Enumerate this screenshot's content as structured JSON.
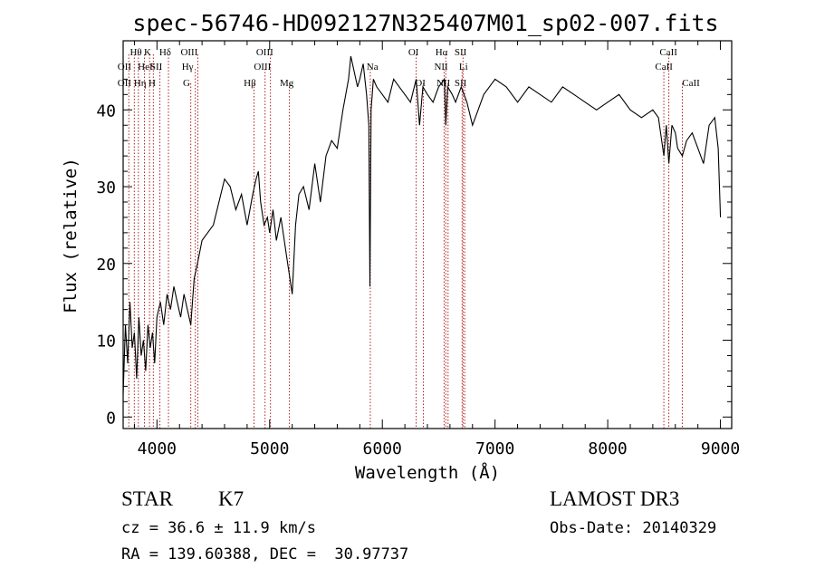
{
  "chart_data": {
    "type": "line",
    "title": "spec-56746-HD092127N325407M01_sp02-007.fits",
    "xlabel": "Wavelength (Å)",
    "ylabel": "Flux (relative)",
    "xlim": [
      3700,
      9100
    ],
    "ylim": [
      -1.5,
      49
    ],
    "x_ticks": [
      4000,
      5000,
      6000,
      7000,
      8000,
      9000
    ],
    "y_ticks": [
      0,
      10,
      20,
      30,
      40
    ],
    "grid": false,
    "line_color": "#000000",
    "marker_color": "#b22222",
    "series": [
      {
        "x": [
          3700,
          3720,
          3740,
          3760,
          3780,
          3800,
          3820,
          3840,
          3860,
          3880,
          3900,
          3920,
          3940,
          3960,
          3980,
          4000,
          4030,
          4060,
          4090,
          4120,
          4150,
          4180,
          4210,
          4240,
          4270,
          4300,
          4330,
          4360,
          4400,
          4450,
          4500,
          4550,
          4600,
          4650,
          4700,
          4750,
          4800,
          4850,
          4880,
          4900,
          4920,
          4950,
          4980,
          5000,
          5030,
          5060,
          5100,
          5150,
          5180,
          5200,
          5230,
          5260,
          5300,
          5350,
          5400,
          5450,
          5500,
          5550,
          5600,
          5650,
          5700,
          5720,
          5750,
          5780,
          5800,
          5830,
          5860,
          5880,
          5890,
          5900,
          5920,
          5950,
          6000,
          6050,
          6100,
          6150,
          6200,
          6250,
          6300,
          6330,
          6360,
          6400,
          6450,
          6500,
          6550,
          6563,
          6580,
          6620,
          6650,
          6700,
          6750,
          6800,
          6850,
          6900,
          6950,
          7000,
          7100,
          7200,
          7300,
          7400,
          7500,
          7600,
          7700,
          7800,
          7900,
          8000,
          8100,
          8200,
          8300,
          8400,
          8450,
          8498,
          8520,
          8542,
          8570,
          8600,
          8620,
          8662,
          8700,
          8750,
          8800,
          8850,
          8900,
          8950,
          8980,
          9000
        ],
        "y": [
          3,
          12,
          7,
          15,
          9,
          11,
          5,
          13,
          8,
          10,
          6,
          12,
          9,
          11,
          7,
          13,
          15,
          12,
          16,
          14,
          17,
          15,
          13,
          16,
          14,
          12,
          18,
          20,
          23,
          24,
          25,
          28,
          31,
          30,
          27,
          29,
          25,
          29,
          31,
          32,
          28,
          25,
          26,
          24,
          27,
          23,
          26,
          21,
          18,
          16,
          25,
          29,
          30,
          27,
          33,
          28,
          34,
          36,
          35,
          40,
          44,
          47,
          45,
          43,
          44,
          46,
          42,
          38,
          17,
          40,
          44,
          43,
          42,
          41,
          44,
          43,
          42,
          41,
          44,
          38,
          43,
          42,
          41,
          43,
          44,
          38,
          43,
          42,
          41,
          43,
          41,
          38,
          40,
          42,
          43,
          44,
          43,
          41,
          43,
          42,
          41,
          43,
          42,
          41,
          40,
          41,
          42,
          40,
          39,
          40,
          39,
          34,
          38,
          33,
          38,
          37,
          35,
          34,
          36,
          37,
          35,
          33,
          38,
          39,
          35,
          26
        ]
      }
    ],
    "line_markers": [
      {
        "x": 3750,
        "row": 1
      },
      {
        "x": 3799,
        "row": 1
      },
      {
        "x": 3835,
        "row": 1
      },
      {
        "x": 3889,
        "row": 1
      },
      {
        "x": 3934,
        "row": 1
      },
      {
        "x": 3968,
        "row": 1
      },
      {
        "x": 4026,
        "row": 2
      },
      {
        "x": 4102,
        "row": 1
      },
      {
        "x": 4300,
        "row": 3
      },
      {
        "x": 4340,
        "row": 2
      },
      {
        "x": 4363,
        "row": 1
      },
      {
        "x": 4861,
        "row": 3
      },
      {
        "x": 4959,
        "row": 2
      },
      {
        "x": 5007,
        "row": 1
      },
      {
        "x": 5175,
        "row": 3
      },
      {
        "x": 5893,
        "row": 2
      },
      {
        "x": 6300,
        "row": 1
      },
      {
        "x": 6364,
        "row": 3
      },
      {
        "x": 6548,
        "row": 2
      },
      {
        "x": 6563,
        "row": 1
      },
      {
        "x": 6583,
        "row": 3
      },
      {
        "x": 6708,
        "row": 2
      },
      {
        "x": 6716,
        "row": 1
      },
      {
        "x": 6731,
        "row": 3
      },
      {
        "x": 8498,
        "row": 2
      },
      {
        "x": 8542,
        "row": 1
      },
      {
        "x": 8662,
        "row": 3
      }
    ],
    "line_labels": [
      {
        "text": "Hθ",
        "x": 3760,
        "row": 1
      },
      {
        "text": "K",
        "x": 3885,
        "row": 1
      },
      {
        "text": "Hδ",
        "x": 4020,
        "row": 1
      },
      {
        "text": "OIII",
        "x": 4210,
        "row": 1
      },
      {
        "text": "OIII",
        "x": 4880,
        "row": 1
      },
      {
        "text": "OI",
        "x": 6230,
        "row": 1
      },
      {
        "text": "Hα",
        "x": 6470,
        "row": 1
      },
      {
        "text": "SII",
        "x": 6640,
        "row": 1
      },
      {
        "text": "CaII",
        "x": 8460,
        "row": 1
      },
      {
        "text": "OII",
        "x": 3650,
        "row": 2
      },
      {
        "text": "HeI",
        "x": 3830,
        "row": 2
      },
      {
        "text": "SII",
        "x": 3940,
        "row": 2
      },
      {
        "text": "Hγ",
        "x": 4220,
        "row": 2
      },
      {
        "text": "OIII",
        "x": 4860,
        "row": 2
      },
      {
        "text": "Na",
        "x": 5860,
        "row": 2
      },
      {
        "text": "NII",
        "x": 6460,
        "row": 2
      },
      {
        "text": "Li",
        "x": 6680,
        "row": 2
      },
      {
        "text": "CaII",
        "x": 8420,
        "row": 2
      },
      {
        "text": "OII",
        "x": 3650,
        "row": 3
      },
      {
        "text": "Hη",
        "x": 3795,
        "row": 3
      },
      {
        "text": "H",
        "x": 3925,
        "row": 3
      },
      {
        "text": "G",
        "x": 4230,
        "row": 3
      },
      {
        "text": "Hβ",
        "x": 4770,
        "row": 3
      },
      {
        "text": "Mg",
        "x": 5090,
        "row": 3
      },
      {
        "text": "OI",
        "x": 6290,
        "row": 3
      },
      {
        "text": "NII",
        "x": 6480,
        "row": 3
      },
      {
        "text": "SII",
        "x": 6640,
        "row": 3
      },
      {
        "text": "CaII",
        "x": 8660,
        "row": 3
      }
    ]
  },
  "info": {
    "class": "STAR",
    "subclass": "K7",
    "survey": "LAMOST DR3",
    "cz": "cz = 36.6 ± 11.9 km/s",
    "obs_date": "Obs-Date: 20140329",
    "coords": "RA = 139.60388, DEC =  30.97737"
  }
}
